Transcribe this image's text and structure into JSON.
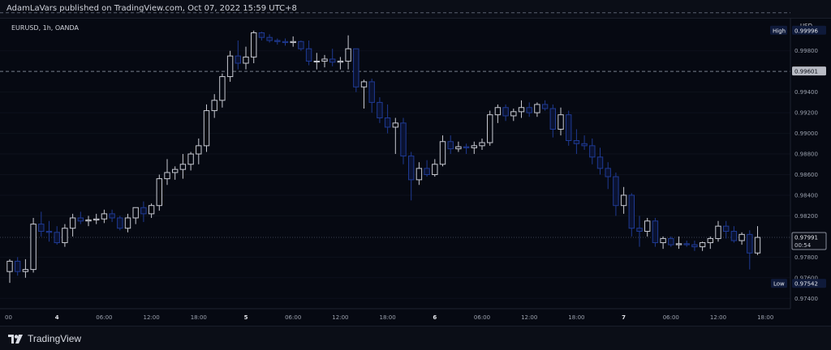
{
  "header": {
    "published_text": "AdamLaVars published on TradingView.com, Oct 07, 2022 15:59 UTC+8"
  },
  "chart_data": {
    "type": "candlestick",
    "title": "EURUSD, 1h, OANDA",
    "currency": "USD",
    "y_range": [
      0.973,
      1.0012
    ],
    "y_ticks": [
      0.974,
      0.976,
      0.978,
      0.982,
      0.984,
      0.986,
      0.988,
      0.99,
      0.992,
      0.994,
      0.998
    ],
    "x_ticks": [
      {
        "label": "00",
        "index": 0,
        "day": false
      },
      {
        "label": "4",
        "index": 6,
        "day": true
      },
      {
        "label": "06:00",
        "index": 12,
        "day": false
      },
      {
        "label": "12:00",
        "index": 18,
        "day": false
      },
      {
        "label": "18:00",
        "index": 24,
        "day": false
      },
      {
        "label": "5",
        "index": 30,
        "day": true
      },
      {
        "label": "06:00",
        "index": 36,
        "day": false
      },
      {
        "label": "12:00",
        "index": 42,
        "day": false
      },
      {
        "label": "18:00",
        "index": 48,
        "day": false
      },
      {
        "label": "6",
        "index": 54,
        "day": true
      },
      {
        "label": "06:00",
        "index": 60,
        "day": false
      },
      {
        "label": "12:00",
        "index": 66,
        "day": false
      },
      {
        "label": "18:00",
        "index": 72,
        "day": false
      },
      {
        "label": "7",
        "index": 78,
        "day": true
      },
      {
        "label": "06:00",
        "index": 84,
        "day": false
      },
      {
        "label": "12:00",
        "index": 90,
        "day": false
      },
      {
        "label": "18:00",
        "index": 96,
        "day": false
      }
    ],
    "high": {
      "label": "High",
      "value": "0.99996",
      "price": 0.99996
    },
    "low": {
      "label": "Low",
      "value": "0.97542",
      "price": 0.97542
    },
    "marker_line": {
      "value": "0.99601",
      "price": 0.99601
    },
    "current": {
      "value": "0.97991",
      "countdown": "00:54",
      "price": 0.97991
    },
    "colors": {
      "up": "#c8cad2",
      "down": "#1f3a93",
      "bg": "#060912"
    },
    "candles": [
      {
        "o": 0.9766,
        "h": 0.9778,
        "l": 0.9755,
        "c": 0.9776
      },
      {
        "o": 0.9776,
        "h": 0.978,
        "l": 0.9762,
        "c": 0.9766
      },
      {
        "o": 0.9766,
        "h": 0.9778,
        "l": 0.976,
        "c": 0.9768
      },
      {
        "o": 0.9768,
        "h": 0.9818,
        "l": 0.9765,
        "c": 0.9812
      },
      {
        "o": 0.9812,
        "h": 0.9824,
        "l": 0.98,
        "c": 0.9805
      },
      {
        "o": 0.9805,
        "h": 0.9815,
        "l": 0.9795,
        "c": 0.9804
      },
      {
        "o": 0.9804,
        "h": 0.981,
        "l": 0.9792,
        "c": 0.9794
      },
      {
        "o": 0.9794,
        "h": 0.9812,
        "l": 0.979,
        "c": 0.9808
      },
      {
        "o": 0.9808,
        "h": 0.9822,
        "l": 0.98,
        "c": 0.9818
      },
      {
        "o": 0.9818,
        "h": 0.9824,
        "l": 0.9812,
        "c": 0.9815
      },
      {
        "o": 0.9815,
        "h": 0.982,
        "l": 0.981,
        "c": 0.9816
      },
      {
        "o": 0.9816,
        "h": 0.9822,
        "l": 0.9812,
        "c": 0.9817
      },
      {
        "o": 0.9817,
        "h": 0.9826,
        "l": 0.9813,
        "c": 0.9822
      },
      {
        "o": 0.9822,
        "h": 0.9826,
        "l": 0.9814,
        "c": 0.9818
      },
      {
        "o": 0.9818,
        "h": 0.982,
        "l": 0.9806,
        "c": 0.9808
      },
      {
        "o": 0.9808,
        "h": 0.9822,
        "l": 0.9804,
        "c": 0.9818
      },
      {
        "o": 0.9818,
        "h": 0.9828,
        "l": 0.9812,
        "c": 0.9828
      },
      {
        "o": 0.9828,
        "h": 0.9834,
        "l": 0.9814,
        "c": 0.9822
      },
      {
        "o": 0.9822,
        "h": 0.9832,
        "l": 0.9818,
        "c": 0.983
      },
      {
        "o": 0.983,
        "h": 0.986,
        "l": 0.9825,
        "c": 0.9856
      },
      {
        "o": 0.9856,
        "h": 0.9875,
        "l": 0.985,
        "c": 0.9862
      },
      {
        "o": 0.9862,
        "h": 0.9868,
        "l": 0.9855,
        "c": 0.9865
      },
      {
        "o": 0.9865,
        "h": 0.988,
        "l": 0.9856,
        "c": 0.987
      },
      {
        "o": 0.987,
        "h": 0.9882,
        "l": 0.9864,
        "c": 0.988
      },
      {
        "o": 0.988,
        "h": 0.9895,
        "l": 0.987,
        "c": 0.9888
      },
      {
        "o": 0.9888,
        "h": 0.9928,
        "l": 0.9882,
        "c": 0.9922
      },
      {
        "o": 0.9922,
        "h": 0.9938,
        "l": 0.9915,
        "c": 0.9932
      },
      {
        "o": 0.9932,
        "h": 0.9958,
        "l": 0.9925,
        "c": 0.9955
      },
      {
        "o": 0.9955,
        "h": 0.998,
        "l": 0.995,
        "c": 0.9975
      },
      {
        "o": 0.9975,
        "h": 0.999,
        "l": 0.9962,
        "c": 0.9968
      },
      {
        "o": 0.9968,
        "h": 0.9984,
        "l": 0.9962,
        "c": 0.9974
      },
      {
        "o": 0.9974,
        "h": 0.99996,
        "l": 0.9968,
        "c": 0.99975
      },
      {
        "o": 0.99975,
        "h": 0.99985,
        "l": 0.999,
        "c": 0.9993
      },
      {
        "o": 0.9993,
        "h": 0.9996,
        "l": 0.9988,
        "c": 0.999
      },
      {
        "o": 0.999,
        "h": 0.9992,
        "l": 0.9986,
        "c": 0.9989
      },
      {
        "o": 0.9989,
        "h": 0.9992,
        "l": 0.9985,
        "c": 0.9988
      },
      {
        "o": 0.9988,
        "h": 0.9994,
        "l": 0.9984,
        "c": 0.9989
      },
      {
        "o": 0.9989,
        "h": 0.999,
        "l": 0.998,
        "c": 0.9982
      },
      {
        "o": 0.9982,
        "h": 0.999,
        "l": 0.9966,
        "c": 0.997
      },
      {
        "o": 0.997,
        "h": 0.9978,
        "l": 0.9962,
        "c": 0.997
      },
      {
        "o": 0.997,
        "h": 0.9976,
        "l": 0.9964,
        "c": 0.9972
      },
      {
        "o": 0.9972,
        "h": 0.9982,
        "l": 0.9965,
        "c": 0.9969
      },
      {
        "o": 0.9969,
        "h": 0.9974,
        "l": 0.9962,
        "c": 0.997
      },
      {
        "o": 0.997,
        "h": 0.9995,
        "l": 0.9962,
        "c": 0.9982
      },
      {
        "o": 0.9982,
        "h": 0.9982,
        "l": 0.994,
        "c": 0.9945
      },
      {
        "o": 0.9945,
        "h": 0.9952,
        "l": 0.9924,
        "c": 0.995
      },
      {
        "o": 0.995,
        "h": 0.9953,
        "l": 0.992,
        "c": 0.993
      },
      {
        "o": 0.993,
        "h": 0.9935,
        "l": 0.991,
        "c": 0.9915
      },
      {
        "o": 0.9915,
        "h": 0.9928,
        "l": 0.99,
        "c": 0.9906
      },
      {
        "o": 0.9906,
        "h": 0.9915,
        "l": 0.988,
        "c": 0.991
      },
      {
        "o": 0.991,
        "h": 0.9915,
        "l": 0.987,
        "c": 0.9878
      },
      {
        "o": 0.9878,
        "h": 0.9882,
        "l": 0.9835,
        "c": 0.9855
      },
      {
        "o": 0.9855,
        "h": 0.9872,
        "l": 0.985,
        "c": 0.9866
      },
      {
        "o": 0.9866,
        "h": 0.9874,
        "l": 0.9858,
        "c": 0.986
      },
      {
        "o": 0.986,
        "h": 0.9875,
        "l": 0.9858,
        "c": 0.987
      },
      {
        "o": 0.987,
        "h": 0.9898,
        "l": 0.9868,
        "c": 0.9892
      },
      {
        "o": 0.9892,
        "h": 0.9898,
        "l": 0.988,
        "c": 0.9885
      },
      {
        "o": 0.9885,
        "h": 0.9892,
        "l": 0.9882,
        "c": 0.9887
      },
      {
        "o": 0.9887,
        "h": 0.989,
        "l": 0.988,
        "c": 0.9886
      },
      {
        "o": 0.9886,
        "h": 0.9892,
        "l": 0.988,
        "c": 0.9888
      },
      {
        "o": 0.9888,
        "h": 0.9895,
        "l": 0.9884,
        "c": 0.9891
      },
      {
        "o": 0.9891,
        "h": 0.9922,
        "l": 0.9888,
        "c": 0.9918
      },
      {
        "o": 0.9918,
        "h": 0.9928,
        "l": 0.991,
        "c": 0.9925
      },
      {
        "o": 0.9925,
        "h": 0.9928,
        "l": 0.9912,
        "c": 0.9917
      },
      {
        "o": 0.9917,
        "h": 0.9924,
        "l": 0.9912,
        "c": 0.9921
      },
      {
        "o": 0.9921,
        "h": 0.9932,
        "l": 0.9915,
        "c": 0.9925
      },
      {
        "o": 0.9925,
        "h": 0.993,
        "l": 0.9916,
        "c": 0.992
      },
      {
        "o": 0.992,
        "h": 0.993,
        "l": 0.9916,
        "c": 0.9928
      },
      {
        "o": 0.9928,
        "h": 0.9932,
        "l": 0.9922,
        "c": 0.9924
      },
      {
        "o": 0.9924,
        "h": 0.9928,
        "l": 0.9896,
        "c": 0.9904
      },
      {
        "o": 0.9904,
        "h": 0.9925,
        "l": 0.9898,
        "c": 0.9918
      },
      {
        "o": 0.9918,
        "h": 0.9922,
        "l": 0.9888,
        "c": 0.9893
      },
      {
        "o": 0.9893,
        "h": 0.9904,
        "l": 0.988,
        "c": 0.989
      },
      {
        "o": 0.989,
        "h": 0.9898,
        "l": 0.9884,
        "c": 0.9888
      },
      {
        "o": 0.9888,
        "h": 0.9895,
        "l": 0.987,
        "c": 0.9877
      },
      {
        "o": 0.9877,
        "h": 0.9886,
        "l": 0.986,
        "c": 0.9866
      },
      {
        "o": 0.9866,
        "h": 0.9872,
        "l": 0.9846,
        "c": 0.9858
      },
      {
        "o": 0.9858,
        "h": 0.9862,
        "l": 0.982,
        "c": 0.983
      },
      {
        "o": 0.983,
        "h": 0.9848,
        "l": 0.9822,
        "c": 0.984
      },
      {
        "o": 0.984,
        "h": 0.9842,
        "l": 0.98,
        "c": 0.9808
      },
      {
        "o": 0.9808,
        "h": 0.982,
        "l": 0.979,
        "c": 0.9805
      },
      {
        "o": 0.9805,
        "h": 0.9818,
        "l": 0.98,
        "c": 0.9815
      },
      {
        "o": 0.9815,
        "h": 0.9818,
        "l": 0.979,
        "c": 0.9794
      },
      {
        "o": 0.9794,
        "h": 0.98,
        "l": 0.9788,
        "c": 0.9798
      },
      {
        "o": 0.9798,
        "h": 0.98,
        "l": 0.979,
        "c": 0.9792
      },
      {
        "o": 0.9792,
        "h": 0.98,
        "l": 0.9788,
        "c": 0.9793
      },
      {
        "o": 0.9793,
        "h": 0.9796,
        "l": 0.979,
        "c": 0.9792
      },
      {
        "o": 0.9792,
        "h": 0.9796,
        "l": 0.9786,
        "c": 0.979
      },
      {
        "o": 0.979,
        "h": 0.9795,
        "l": 0.9786,
        "c": 0.9794
      },
      {
        "o": 0.9794,
        "h": 0.98,
        "l": 0.9788,
        "c": 0.9798
      },
      {
        "o": 0.9798,
        "h": 0.9815,
        "l": 0.9795,
        "c": 0.981
      },
      {
        "o": 0.981,
        "h": 0.9815,
        "l": 0.9798,
        "c": 0.9805
      },
      {
        "o": 0.9805,
        "h": 0.981,
        "l": 0.9794,
        "c": 0.9796
      },
      {
        "o": 0.9796,
        "h": 0.9804,
        "l": 0.9792,
        "c": 0.9802
      },
      {
        "o": 0.9802,
        "h": 0.9806,
        "l": 0.9768,
        "c": 0.9784
      },
      {
        "o": 0.9784,
        "h": 0.981,
        "l": 0.9782,
        "c": 0.97991
      }
    ]
  },
  "footer": {
    "brand": "TradingView"
  }
}
